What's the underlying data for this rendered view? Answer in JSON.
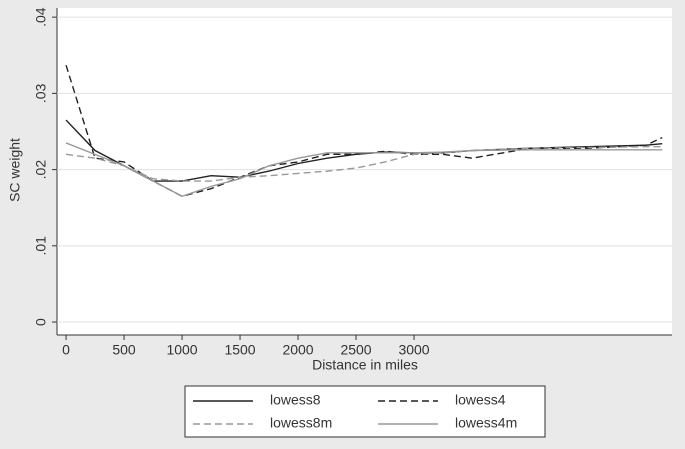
{
  "chart_data": {
    "type": "line",
    "ylabel": "SC weight",
    "xlabel": "Distance in miles",
    "x": [
      0,
      250,
      500,
      750,
      1000,
      1250,
      1500,
      1750,
      2000,
      2250,
      2500,
      2750,
      3000,
      3250,
      3500,
      4000,
      4500,
      5000,
      5140
    ],
    "series": [
      {
        "name": "lowess8",
        "color": "#222222",
        "dash": false,
        "values": [
          0.0265,
          0.0225,
          0.0205,
          0.0185,
          0.0185,
          0.0192,
          0.019,
          0.0198,
          0.0208,
          0.0215,
          0.022,
          0.0223,
          0.0222,
          0.0222,
          0.0225,
          0.0228,
          0.023,
          0.0232,
          0.0234
        ]
      },
      {
        "name": "lowess4",
        "color": "#222222",
        "dash": true,
        "values": [
          0.0337,
          0.0215,
          0.021,
          0.0185,
          0.0165,
          0.0175,
          0.019,
          0.0205,
          0.021,
          0.022,
          0.022,
          0.0224,
          0.022,
          0.022,
          0.0215,
          0.0228,
          0.0228,
          0.0232,
          0.0242
        ]
      },
      {
        "name": "lowess8m",
        "color": "#999999",
        "dash": true,
        "values": [
          0.022,
          0.0215,
          0.0205,
          0.0188,
          0.0185,
          0.0185,
          0.019,
          0.0192,
          0.0195,
          0.0198,
          0.0202,
          0.021,
          0.022,
          0.0222,
          0.0225,
          0.0228,
          0.0229,
          0.023,
          0.023
        ]
      },
      {
        "name": "lowess4m",
        "color": "#999999",
        "dash": false,
        "values": [
          0.0235,
          0.022,
          0.0205,
          0.0185,
          0.0165,
          0.0178,
          0.0188,
          0.0205,
          0.0215,
          0.0222,
          0.0222,
          0.0222,
          0.0222,
          0.0223,
          0.0225,
          0.0226,
          0.0226,
          0.0226,
          0.0226
        ]
      }
    ],
    "xlim": [
      -78,
      5224
    ],
    "xticks": [
      0,
      500,
      1000,
      1500,
      2000,
      2500,
      3000
    ],
    "ylim": [
      -0.0017,
      0.0412
    ],
    "yticks": [
      0,
      {
        "value": 0.01,
        "label": ".01"
      },
      {
        "value": 0.02,
        "label": ".02"
      },
      {
        "value": 0.03,
        "label": ".03"
      },
      {
        "value": 0.04,
        "label": ".04"
      }
    ],
    "grid": true
  }
}
